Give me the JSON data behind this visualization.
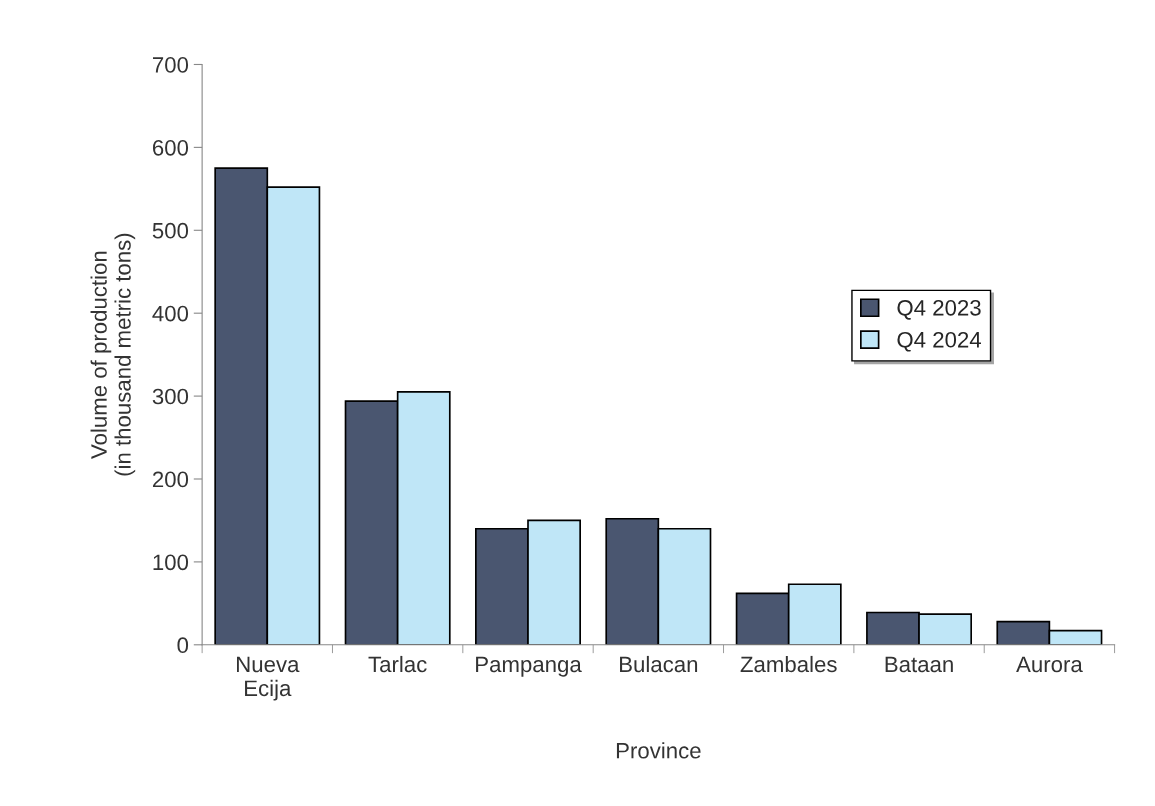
{
  "chart_data": {
    "type": "bar",
    "xlabel": "Province",
    "ylabel": "Volume of production\n(in thousand metric tons)",
    "categories": [
      "Nueva\nEcija",
      "Tarlac",
      "Pampanga",
      "Bulacan",
      "Zambales",
      "Bataan",
      "Aurora"
    ],
    "series": [
      {
        "name": "Q4 2023",
        "color": "#4a5670",
        "values": [
          575,
          294,
          140,
          152,
          62,
          39,
          28
        ]
      },
      {
        "name": "Q4 2024",
        "color": "#bfe6f7",
        "values": [
          552,
          305,
          150,
          140,
          73,
          37,
          17
        ]
      }
    ],
    "ylim": [
      0,
      700
    ],
    "yticks": [
      0,
      100,
      200,
      300,
      400,
      500,
      600,
      700
    ],
    "grid": false,
    "legend": "right"
  }
}
